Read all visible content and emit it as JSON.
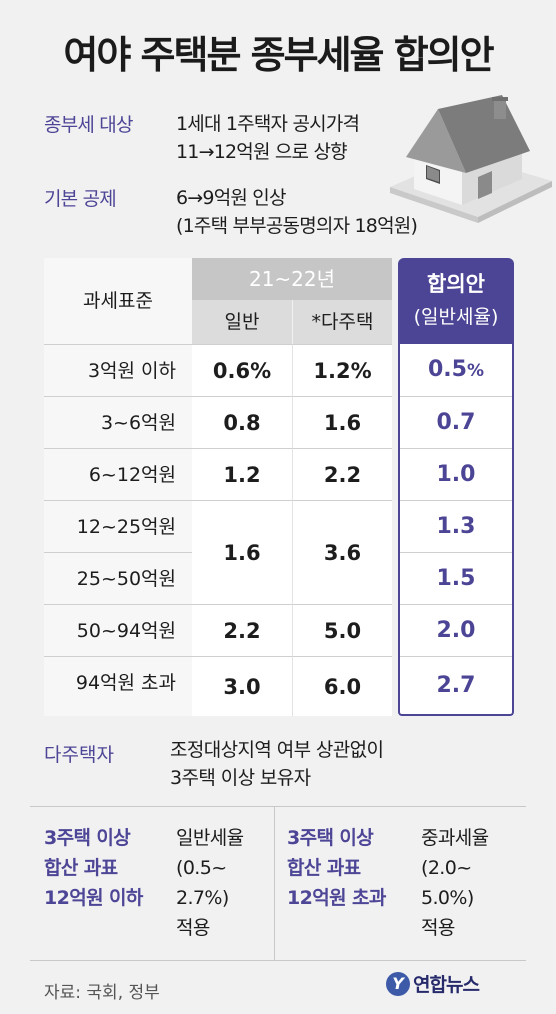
{
  "title": "여야 주택분 종부세율 합의안",
  "info": {
    "target_label": "종부세 대상",
    "target_line1": "1세대 1주택자 공시가격",
    "target_line2": "11→12억원 으로 상향",
    "deduction_label": "기본 공제",
    "deduction_line1": "6→9억원 인상",
    "deduction_line2": "(1주택 부부공동명의자 18억원)"
  },
  "table": {
    "header_basis": "과세표준",
    "header_period": "21~22년",
    "header_general": "일반",
    "header_multi": "*다주택",
    "header_agree_1": "합의안",
    "header_agree_2": "(일반세율)",
    "rows": [
      {
        "label": "3억원 이하",
        "general": "0.6%",
        "multi": "1.2%",
        "agree": "0.5"
      },
      {
        "label": "3~6억원",
        "general": "0.8",
        "multi": "1.6",
        "agree": "0.7"
      },
      {
        "label": "6~12억원",
        "general": "1.2",
        "multi": "2.2",
        "agree": "1.0"
      },
      {
        "label": "12~25억원",
        "agree": "1.3"
      },
      {
        "label": "25~50억원",
        "agree": "1.5"
      },
      {
        "label": "50~94억원",
        "general": "2.2",
        "multi": "5.0",
        "agree": "2.0"
      },
      {
        "label": "94억원 초과",
        "general": "3.0",
        "multi": "6.0",
        "agree": "2.7"
      }
    ],
    "merged_general": "1.6",
    "merged_multi": "3.6",
    "pct_unit": "%"
  },
  "multi_owner": {
    "label": "다주택자",
    "line1": "조정대상지역 여부 상관없이",
    "line2": "3주택 이상 보유자"
  },
  "boxes": {
    "left_title": "3주택 이상\n합산 과표\n12억원 이하",
    "left_text": "일반세율\n(0.5~\n 2.7%)\n적용",
    "right_title": "3주택 이상\n합산 과표\n12억원 초과",
    "right_text": "중과세율\n(2.0~\n 5.0%)\n적용"
  },
  "source": "자료: 국회, 정부",
  "logo": "연합뉴스",
  "colors": {
    "accent": "#4c4596",
    "header_gray": "#c6c6c6"
  }
}
